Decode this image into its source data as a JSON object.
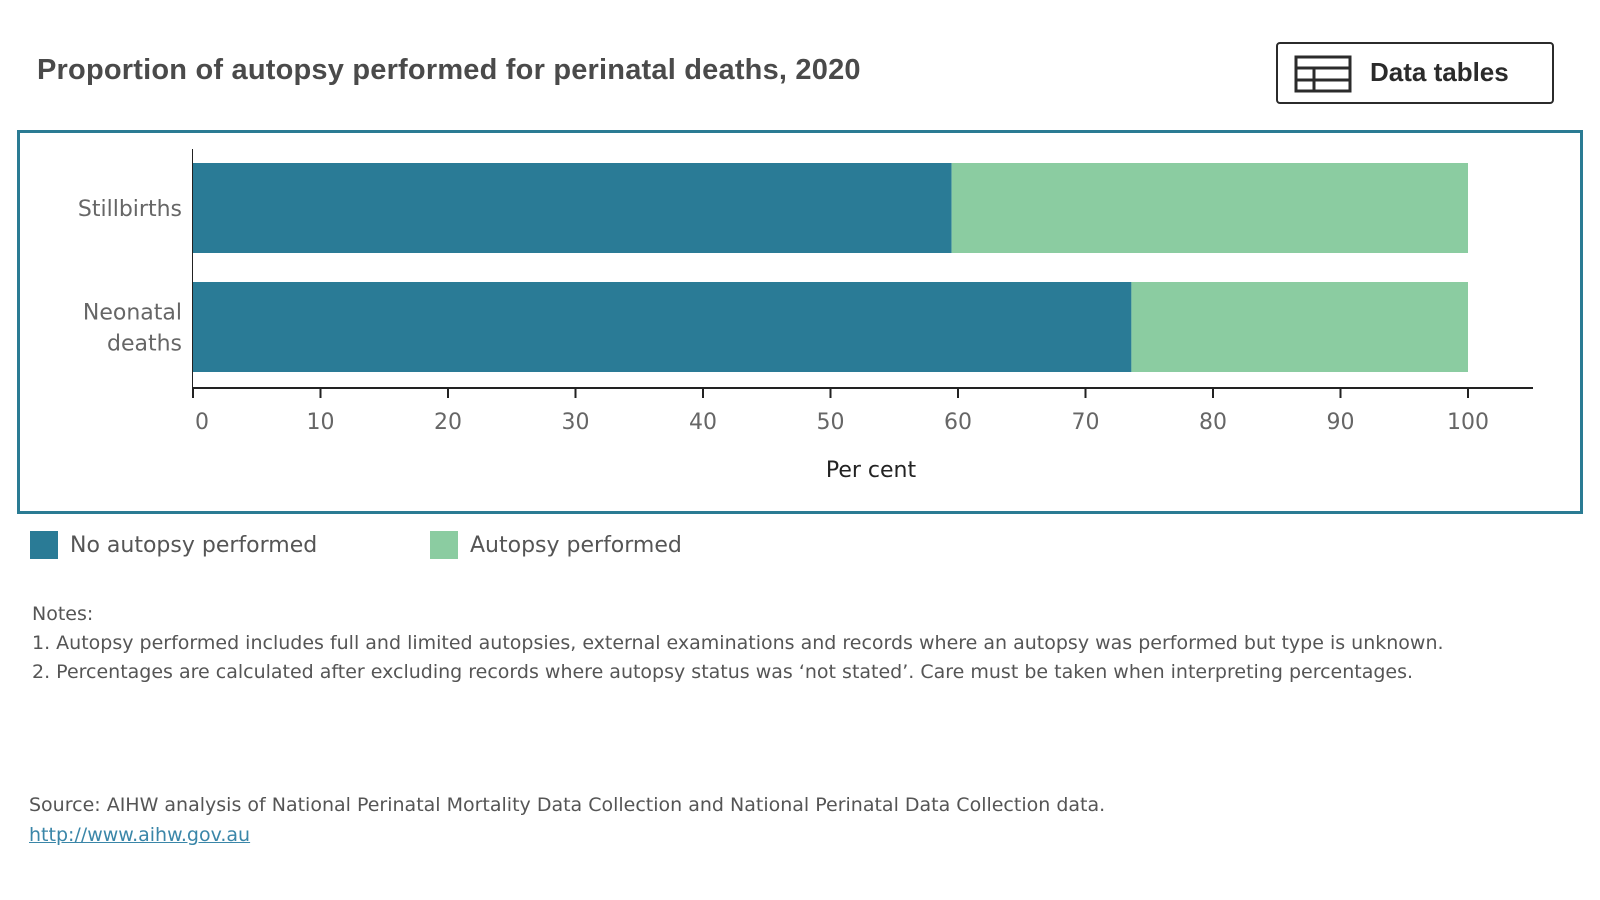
{
  "title": "Proportion of autopsy performed for perinatal deaths, 2020",
  "data_tables_button": {
    "label": "Data tables",
    "icon": "table-icon"
  },
  "colors": {
    "no_autopsy": "#2a7b96",
    "autopsy": "#8bcca1",
    "frame": "#2a7b93",
    "axis": "#222222",
    "link": "#3a86a8"
  },
  "chart_data": {
    "type": "bar",
    "orientation": "horizontal",
    "stacked": true,
    "categories": [
      [
        "Stillbirths"
      ],
      [
        "Neonatal",
        "deaths"
      ]
    ],
    "series": [
      {
        "name": "No autopsy performed",
        "values": [
          59.5,
          73.6
        ],
        "color": "#2a7b96"
      },
      {
        "name": "Autopsy performed",
        "values": [
          40.5,
          26.4
        ],
        "color": "#8bcca1"
      }
    ],
    "xlabel": "Per cent",
    "xlim": [
      0,
      100
    ],
    "xticks": [
      0,
      10,
      20,
      30,
      40,
      50,
      60,
      70,
      80,
      90,
      100
    ],
    "grid": false,
    "legend_position": "bottom-left"
  },
  "legend": [
    {
      "label": "No autopsy performed",
      "color": "#2a7b96"
    },
    {
      "label": "Autopsy performed",
      "color": "#8bcca1"
    }
  ],
  "notes": {
    "heading": "Notes:",
    "items": [
      "1. Autopsy performed includes full and limited autopsies, external examinations and records where an autopsy was performed but type is unknown.",
      "2. Percentages are calculated after excluding records where autopsy status was ‘not stated’. Care must be taken when interpreting percentages."
    ]
  },
  "source": {
    "text": "Source: AIHW analysis of National Perinatal Mortality Data Collection and National Perinatal Data Collection data.",
    "link": "http://www.aihw.gov.au"
  }
}
